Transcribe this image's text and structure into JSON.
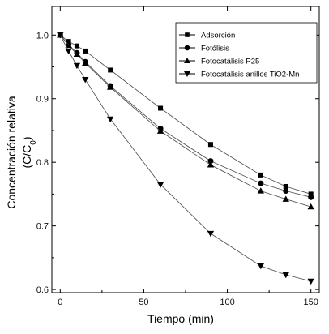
{
  "chart_data": {
    "type": "line",
    "title": "",
    "xlabel": "Tiempo   (min)",
    "ylabel_line1": "Concentración relativa",
    "ylabel_line2_prefix": "(C/C",
    "ylabel_line2_sub": "0",
    "ylabel_line2_suffix": ")",
    "xlim": [
      -5,
      155
    ],
    "ylim": [
      0.595,
      1.045
    ],
    "xticks": [
      0,
      50,
      100,
      150
    ],
    "xtick_labels": [
      "0",
      "50",
      "100",
      "150"
    ],
    "yticks": [
      0.6,
      0.7,
      0.8,
      0.9,
      1.0
    ],
    "ytick_labels": [
      "0.6",
      "0.7",
      "0.8",
      "0.9",
      "1.0"
    ],
    "grid": false,
    "legend_position": "top-right",
    "series": [
      {
        "name": "Adsorción",
        "marker": "square",
        "x": [
          0,
          5,
          10,
          15,
          30,
          60,
          90,
          120,
          135,
          150
        ],
        "y": [
          1.0,
          0.99,
          0.983,
          0.975,
          0.945,
          0.885,
          0.828,
          0.78,
          0.762,
          0.75
        ]
      },
      {
        "name": "Fotólisis",
        "marker": "circle",
        "x": [
          0,
          5,
          10,
          15,
          30,
          60,
          90,
          120,
          135,
          150
        ],
        "y": [
          1.0,
          0.985,
          0.972,
          0.958,
          0.92,
          0.853,
          0.802,
          0.767,
          0.755,
          0.745
        ]
      },
      {
        "name": "Fotocatálisis P25",
        "marker": "triangle-up",
        "x": [
          0,
          5,
          10,
          15,
          30,
          60,
          90,
          120,
          135,
          150
        ],
        "y": [
          1.0,
          0.984,
          0.97,
          0.956,
          0.918,
          0.849,
          0.796,
          0.755,
          0.742,
          0.73
        ]
      },
      {
        "name": "Fotocatálisis anillos TiO2-Mn",
        "marker": "triangle-down",
        "x": [
          0,
          5,
          10,
          15,
          30,
          60,
          90,
          120,
          135,
          150
        ],
        "y": [
          1.0,
          0.975,
          0.952,
          0.93,
          0.868,
          0.765,
          0.688,
          0.637,
          0.623,
          0.613
        ]
      }
    ]
  }
}
